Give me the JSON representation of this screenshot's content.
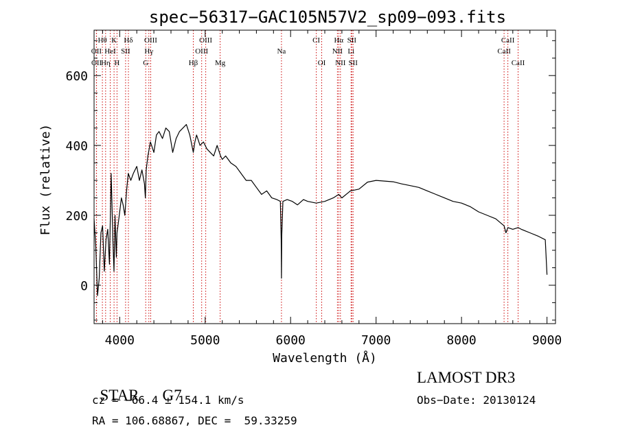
{
  "chart_data": {
    "type": "line",
    "title": "spec−56317−GAC105N57V2_sp09−093.fits",
    "xlabel": "Wavelength (Å)",
    "ylabel": "Flux (relative)",
    "xlim": [
      3700,
      9100
    ],
    "ylim": [
      -110,
      730
    ],
    "x_ticks": [
      4000,
      5000,
      6000,
      7000,
      8000,
      9000
    ],
    "y_ticks": [
      0,
      200,
      400,
      600
    ],
    "series": [
      {
        "name": "flux",
        "x": [
          3700,
          3720,
          3740,
          3760,
          3780,
          3800,
          3820,
          3840,
          3860,
          3880,
          3900,
          3920,
          3933,
          3945,
          3960,
          3968,
          3980,
          4000,
          4020,
          4040,
          4060,
          4080,
          4100,
          4130,
          4160,
          4200,
          4230,
          4260,
          4290,
          4300,
          4310,
          4330,
          4360,
          4400,
          4430,
          4460,
          4500,
          4540,
          4580,
          4620,
          4660,
          4700,
          4740,
          4780,
          4820,
          4861,
          4880,
          4900,
          4940,
          4980,
          5020,
          5060,
          5100,
          5140,
          5180,
          5200,
          5240,
          5300,
          5360,
          5420,
          5480,
          5540,
          5600,
          5660,
          5720,
          5780,
          5840,
          5880,
          5890,
          5893,
          5896,
          5910,
          5960,
          6020,
          6080,
          6150,
          6200,
          6300,
          6400,
          6500,
          6563,
          6600,
          6700,
          6800,
          6900,
          7000,
          7100,
          7200,
          7300,
          7400,
          7500,
          7600,
          7700,
          7800,
          7900,
          8000,
          8100,
          8200,
          8300,
          8400,
          8498,
          8520,
          8542,
          8600,
          8662,
          8700,
          8800,
          8900,
          8980,
          9000
        ],
        "y": [
          190,
          110,
          -30,
          20,
          150,
          170,
          40,
          130,
          160,
          60,
          320,
          130,
          40,
          200,
          80,
          150,
          170,
          210,
          250,
          230,
          200,
          270,
          320,
          300,
          320,
          340,
          300,
          330,
          290,
          250,
          330,
          370,
          410,
          380,
          430,
          440,
          420,
          450,
          440,
          380,
          420,
          440,
          450,
          460,
          430,
          380,
          410,
          430,
          400,
          410,
          390,
          380,
          370,
          400,
          370,
          360,
          370,
          350,
          340,
          320,
          300,
          300,
          280,
          260,
          270,
          250,
          245,
          240,
          130,
          20,
          140,
          240,
          245,
          240,
          230,
          245,
          240,
          235,
          240,
          250,
          260,
          250,
          270,
          275,
          295,
          300,
          298,
          296,
          290,
          285,
          280,
          270,
          260,
          250,
          240,
          235,
          225,
          210,
          200,
          190,
          170,
          150,
          165,
          160,
          165,
          160,
          150,
          140,
          130,
          30
        ]
      }
    ],
    "line_markers": [
      {
        "label": "Hθ",
        "wave": 3797,
        "row": 1
      },
      {
        "label": "K",
        "wave": 3934,
        "row": 1
      },
      {
        "label": "Hδ",
        "wave": 4102,
        "row": 1
      },
      {
        "label": "OIII",
        "wave": 4363,
        "row": 1
      },
      {
        "label": "OIII",
        "wave": 5007,
        "row": 1
      },
      {
        "label": "CI",
        "wave": 6300,
        "row": 1
      },
      {
        "label": "Hα",
        "wave": 6563,
        "row": 1
      },
      {
        "label": "SII",
        "wave": 6716,
        "row": 1
      },
      {
        "label": "CaII",
        "wave": 8542,
        "row": 1
      },
      {
        "label": "OII",
        "wave": 3727,
        "row": 2
      },
      {
        "label": "HeI",
        "wave": 3889,
        "row": 2
      },
      {
        "label": "SII",
        "wave": 4069,
        "row": 2
      },
      {
        "label": "Hγ",
        "wave": 4341,
        "row": 2
      },
      {
        "label": "OIII",
        "wave": 4959,
        "row": 2
      },
      {
        "label": "Na",
        "wave": 5893,
        "row": 2
      },
      {
        "label": "NII",
        "wave": 6548,
        "row": 2
      },
      {
        "label": "Li",
        "wave": 6708,
        "row": 2
      },
      {
        "label": "CaII",
        "wave": 8498,
        "row": 2
      },
      {
        "label": "OII",
        "wave": 3729,
        "row": 3
      },
      {
        "label": "Hη",
        "wave": 3835,
        "row": 3
      },
      {
        "label": "H",
        "wave": 3968,
        "row": 3
      },
      {
        "label": "G",
        "wave": 4304,
        "row": 3
      },
      {
        "label": "Hβ",
        "wave": 4861,
        "row": 3
      },
      {
        "label": "Mg",
        "wave": 5175,
        "row": 3
      },
      {
        "label": "OI",
        "wave": 6364,
        "row": 3
      },
      {
        "label": "NII",
        "wave": 6583,
        "row": 3
      },
      {
        "label": "SII",
        "wave": 6731,
        "row": 3
      },
      {
        "label": "CaII",
        "wave": 8662,
        "row": 3
      }
    ],
    "marker_color": "#cc0000"
  },
  "info": {
    "object_class": "STAR",
    "subclass": "G7",
    "cz": "cz = −66.4 ± 154.1 km/s",
    "coords": "RA = 106.68867, DEC =  59.33259",
    "survey": "LAMOST DR3",
    "obs_date": "Obs−Date: 20130124"
  }
}
